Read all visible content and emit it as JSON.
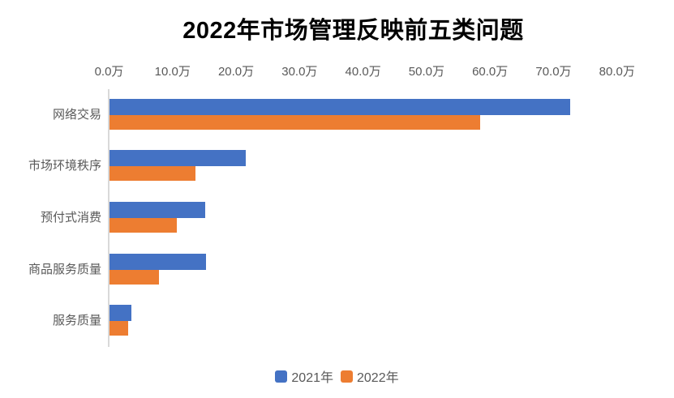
{
  "chart_data": {
    "type": "bar",
    "orientation": "horizontal",
    "title": "2022年市场管理反映前五类问题",
    "unit": "万",
    "categories": [
      "网络交易",
      "市场环境秩序",
      "预付式消费",
      "商品服务质量",
      "服务质量"
    ],
    "series": [
      {
        "name": "2021年",
        "color": "#4472C4",
        "values": [
          72.6,
          21.4,
          15.1,
          15.2,
          3.4
        ]
      },
      {
        "name": "2022年",
        "color": "#ED7D31",
        "values": [
          58.4,
          13.6,
          10.6,
          7.8,
          2.9
        ]
      }
    ],
    "x_axis": {
      "position": "top",
      "min": 0,
      "max": 80,
      "tick_step": 10,
      "ticks": [
        "0.0万",
        "10.0万",
        "20.0万",
        "30.0万",
        "40.0万",
        "50.0万",
        "60.0万",
        "70.0万",
        "80.0万"
      ]
    },
    "grid": false,
    "legend_position": "bottom",
    "colors": {
      "axis_line": "#d9d9d9",
      "tick_text": "#595959",
      "title_text": "#000000"
    }
  }
}
